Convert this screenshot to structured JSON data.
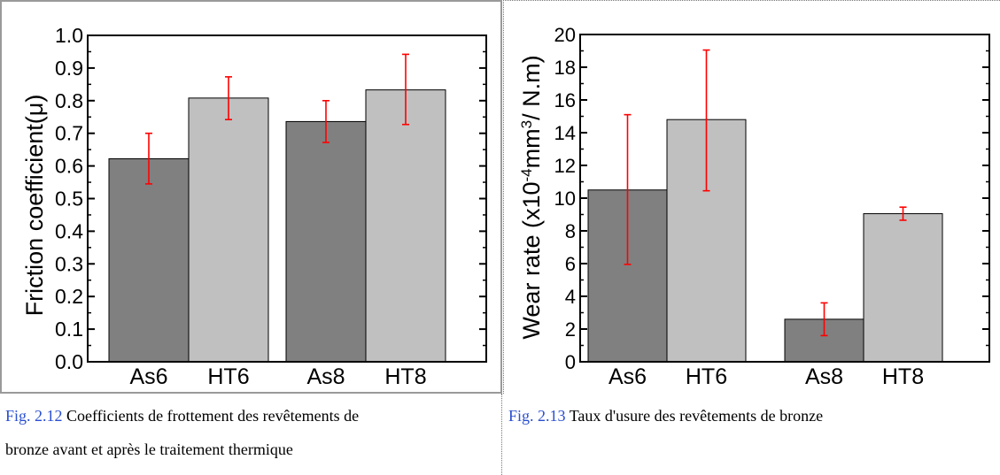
{
  "charts": [
    {
      "id": "friction",
      "chart_data": {
        "type": "bar",
        "categories": [
          "As6",
          "HT6",
          "As8",
          "HT8"
        ],
        "values": [
          0.622,
          0.808,
          0.736,
          0.833
        ],
        "errors": [
          [
            0.545,
            0.7
          ],
          [
            0.742,
            0.873
          ],
          [
            0.672,
            0.8
          ],
          [
            0.727,
            0.942
          ]
        ],
        "title": "",
        "xlabel": "",
        "ylabel": "Friction coefficient(μ)",
        "ylim": [
          0.0,
          1.0
        ],
        "yticks": [
          0.0,
          0.1,
          0.2,
          0.3,
          0.4,
          0.5,
          0.6,
          0.7,
          0.8,
          0.9,
          1.0
        ],
        "ytick_labels": [
          "0.0",
          "0.1",
          "0.2",
          "0.3",
          "0.4",
          "0.5",
          "0.6",
          "0.7",
          "0.8",
          "0.9",
          "1.0"
        ],
        "grid": false
      }
    },
    {
      "id": "wear",
      "chart_data": {
        "type": "bar",
        "categories": [
          "As6",
          "HT6",
          "As8",
          "HT8"
        ],
        "values": [
          10.5,
          14.8,
          2.6,
          9.05
        ],
        "errors": [
          [
            5.95,
            15.1
          ],
          [
            10.45,
            19.05
          ],
          [
            1.6,
            3.6
          ],
          [
            8.65,
            9.45
          ]
        ],
        "title": "",
        "xlabel": "",
        "ylabel": "Wear rate (x10",
        "ylabel_sup1": "-4",
        "ylabel_mid": "mm",
        "ylabel_sup2": "3",
        "ylabel_end": "/ N.m)",
        "ylim": [
          0,
          20
        ],
        "yticks": [
          0,
          2,
          4,
          6,
          8,
          10,
          12,
          14,
          16,
          18,
          20
        ],
        "ytick_labels": [
          "0",
          "2",
          "4",
          "6",
          "8",
          "10",
          "12",
          "14",
          "16",
          "18",
          "20"
        ],
        "grid": false
      }
    }
  ],
  "colors": {
    "dark_bar": "#808080",
    "light_bar": "#c0c0c0",
    "error_bar": "#ff0000",
    "fig_label": "#2a4fd0"
  },
  "captions": {
    "left": {
      "fig": "Fig. 2.12",
      "line1": " Coefficients de frottement des revêtements de",
      "line2": "bronze avant et après le traitement thermique"
    },
    "right": {
      "fig": "Fig. 2.13",
      "line1": " Taux d'usure des revêtements de bronze"
    }
  }
}
